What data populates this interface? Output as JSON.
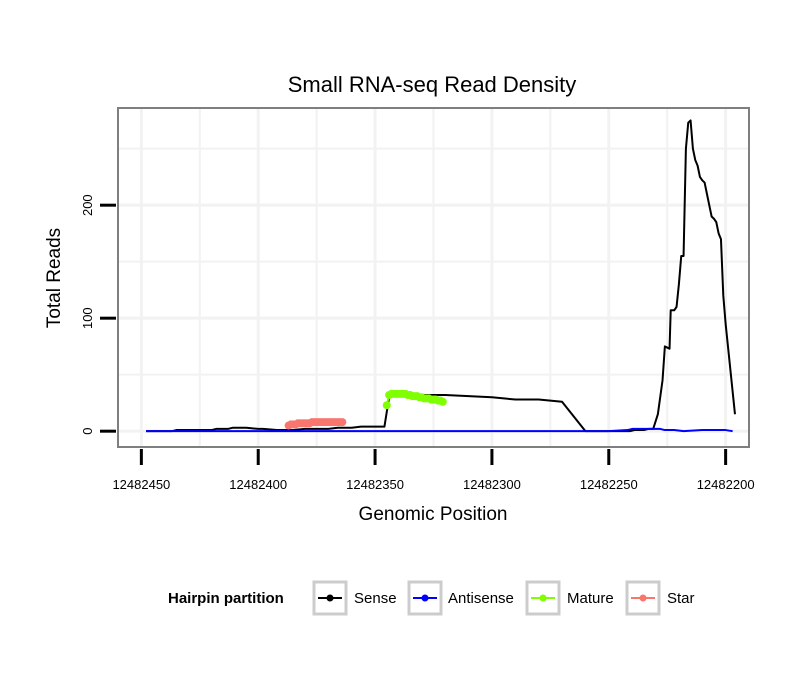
{
  "chart_data": {
    "type": "line",
    "title": "Small RNA-seq Read Density",
    "xlabel": "Genomic Position",
    "ylabel": "Total Reads",
    "x_reversed": true,
    "xlim": [
      12482460,
      12482190
    ],
    "ylim": [
      -14,
      286
    ],
    "x_ticks": [
      12482450,
      12482400,
      12482350,
      12482300,
      12482250,
      12482200
    ],
    "x_tick_labels": [
      "12482450",
      "12482400",
      "12482350",
      "12482300",
      "12482250",
      "12482200"
    ],
    "y_ticks": [
      0,
      100,
      200
    ],
    "y_tick_labels": [
      "0",
      "100",
      "200"
    ],
    "grid": true,
    "legend_position": "bottom",
    "legend_title": "Hairpin partition",
    "series": [
      {
        "name": "Sense",
        "color": "#000000",
        "markers": false,
        "x": [
          12482448,
          12482437,
          12482435,
          12482420,
          12482418,
          12482413,
          12482411,
          12482405,
          12482400,
          12482398,
          12482392,
          12482385,
          12482380,
          12482370,
          12482366,
          12482360,
          12482356,
          12482350,
          12482346,
          12482344,
          12482340,
          12482320,
          12482300,
          12482290,
          12482280,
          12482270,
          12482260,
          12482251,
          12482247,
          12482245,
          12482243,
          12482241,
          12482239,
          12482237,
          12482235,
          12482233,
          12482231,
          12482229,
          12482227,
          12482226,
          12482224,
          12482223.5,
          12482222,
          12482221,
          12482220,
          12482219,
          12482218,
          12482217,
          12482216,
          12482215,
          12482214,
          12482213,
          12482212,
          12482211,
          12482210,
          12482209,
          12482208,
          12482207,
          12482206,
          12482205,
          12482204,
          12482203,
          12482202,
          12482201,
          12482200,
          12482199,
          12482198,
          12482197,
          12482196
        ],
        "y": [
          0,
          0,
          1,
          1,
          2,
          2,
          3,
          3,
          2,
          2,
          1,
          1,
          2,
          2,
          3,
          3,
          4,
          4,
          4,
          30,
          32,
          32,
          30,
          28,
          28,
          26,
          0,
          0,
          0,
          0,
          0,
          0,
          1,
          1,
          1,
          2,
          2,
          15,
          45,
          75,
          73,
          107,
          107,
          110,
          130,
          155,
          155,
          250,
          273,
          275,
          250,
          240,
          235,
          225,
          222,
          220,
          210,
          200,
          190,
          188,
          185,
          175,
          170,
          120,
          95,
          75,
          55,
          35,
          15
        ]
      },
      {
        "name": "Antisense",
        "color": "#0000ff",
        "markers": false,
        "x": [
          12482448,
          12482300,
          12482250,
          12482242,
          12482240,
          12482228,
          12482226,
          12482222,
          12482218,
          12482210,
          12482200,
          12482197
        ],
        "y": [
          0,
          0,
          0,
          1,
          2,
          2,
          1,
          1,
          0,
          1,
          1,
          0
        ]
      },
      {
        "name": "Mature",
        "color": "#7fff00",
        "markers": true,
        "x": [
          12482345,
          12482344,
          12482343,
          12482342,
          12482341,
          12482340,
          12482339,
          12482338,
          12482337,
          12482336,
          12482335,
          12482334,
          12482333,
          12482332,
          12482331,
          12482330,
          12482329,
          12482328,
          12482327,
          12482326,
          12482325,
          12482324,
          12482323,
          12482322,
          12482321
        ],
        "y": [
          23,
          32,
          33,
          33,
          33,
          33,
          33,
          33,
          33,
          32,
          32,
          31,
          31,
          31,
          30,
          30,
          29,
          29,
          29,
          28,
          28,
          28,
          27,
          27,
          26
        ]
      },
      {
        "name": "Star",
        "color": "#f8766d",
        "markers": true,
        "x": [
          12482387,
          12482386,
          12482385,
          12482384,
          12482383,
          12482382,
          12482381,
          12482380,
          12482379,
          12482378,
          12482377,
          12482376,
          12482375,
          12482374,
          12482373,
          12482372,
          12482371,
          12482370,
          12482369,
          12482368,
          12482367,
          12482366,
          12482365,
          12482364
        ],
        "y": [
          5,
          6,
          6,
          6,
          7,
          7,
          7,
          7,
          7,
          7,
          8,
          8,
          8,
          8,
          8,
          8,
          8,
          8,
          8,
          8,
          8,
          8,
          8,
          8
        ]
      }
    ]
  }
}
